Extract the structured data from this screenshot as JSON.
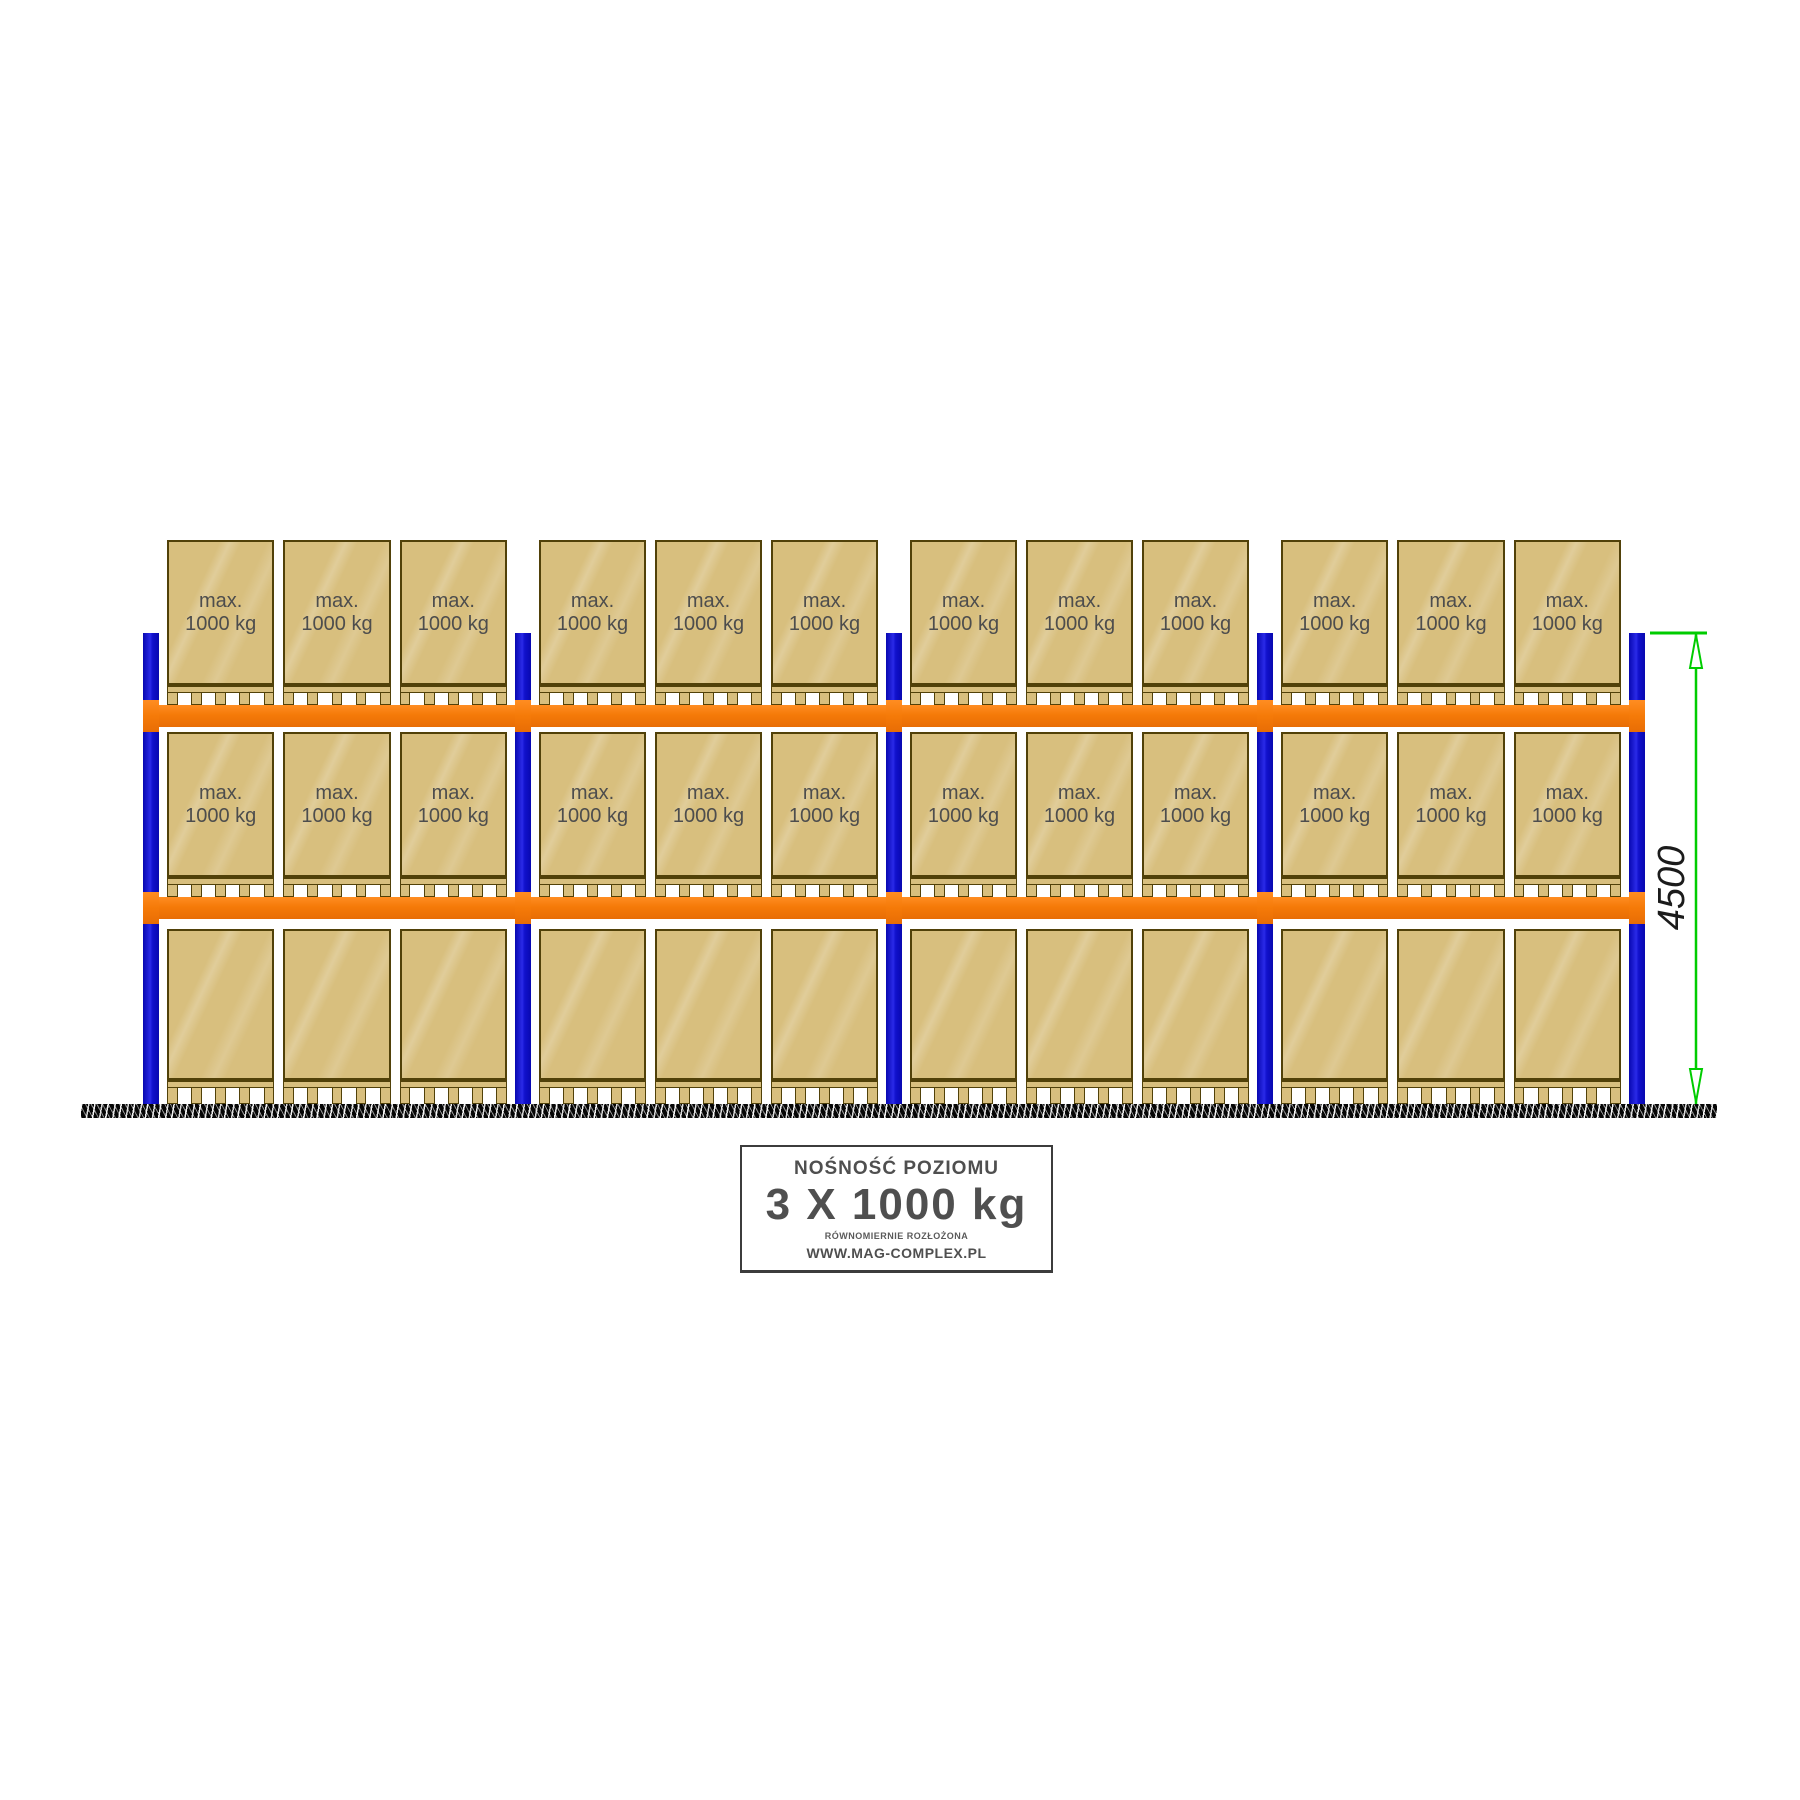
{
  "rack": {
    "bay_count": 4,
    "pallets_per_bay": 3,
    "load_label": {
      "line1": "max.",
      "line2": "1000 kg"
    },
    "levels": [
      {
        "name": "top-level",
        "show_labels": true
      },
      {
        "name": "middle-level",
        "show_labels": true
      },
      {
        "name": "floor-level",
        "show_labels": false
      }
    ],
    "colors": {
      "upright": "#1111CC",
      "beam": "#F57A08",
      "box_fill": "#D8BF7E",
      "box_border": "#514109",
      "box_text": "#4D4D4D"
    }
  },
  "dimension": {
    "value": "4500",
    "color": "#00CC00"
  },
  "info_box": {
    "title": "NOŚNOŚĆ POZIOMU",
    "capacity": "3 X 1000 kg",
    "note": "RÓWNOMIERNIE ROZŁOŻONA",
    "website": "WWW.MAG-COMPLEX.PL"
  }
}
